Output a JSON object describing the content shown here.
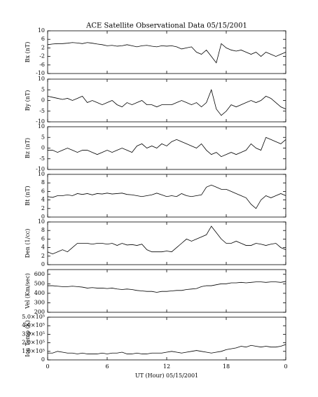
{
  "title": "ACE Satellite Observational Data   05/15/2001",
  "xlabel": "UT (Hour)   05/15/2001",
  "xlim": [
    0,
    24
  ],
  "xticks": [
    0,
    6,
    12,
    18,
    {
      "value": 24,
      "label": "0"
    }
  ],
  "x": [
    0,
    0.5,
    1,
    1.5,
    2,
    2.5,
    3,
    3.5,
    4,
    4.5,
    5,
    5.5,
    6,
    6.5,
    7,
    7.5,
    8,
    8.5,
    9,
    9.5,
    10,
    10.5,
    11,
    11.5,
    12,
    12.5,
    13,
    13.5,
    14,
    14.5,
    15,
    15.5,
    16,
    16.5,
    17,
    17.5,
    18,
    18.5,
    19,
    19.5,
    20,
    20.5,
    21,
    21.5,
    22,
    22.5,
    23,
    23.5,
    24
  ],
  "chart_data": [
    {
      "type": "line",
      "ylabel": "Bx (nT)",
      "color": "#000000",
      "ylim": [
        -10,
        10
      ],
      "yticks": [
        -10,
        -6,
        -2,
        2,
        6,
        10
      ],
      "values": [
        3.5,
        3.8,
        4,
        4,
        4.2,
        4.5,
        4.3,
        4,
        4.5,
        4.2,
        3.8,
        3.5,
        3,
        3.2,
        2.8,
        3,
        3.5,
        3,
        2.5,
        3,
        3.2,
        2.8,
        2.5,
        3,
        2.8,
        3,
        2.5,
        1.5,
        2,
        2.5,
        0,
        -1,
        1,
        -2,
        -5,
        4,
        2,
        1,
        0.5,
        1,
        0,
        -1,
        0,
        -2,
        0,
        -1,
        -2,
        -1,
        0
      ]
    },
    {
      "type": "line",
      "ylabel": "By (nT)",
      "color": "#000000",
      "ylim": [
        -10,
        10
      ],
      "yticks": [
        -10,
        -5,
        0,
        5,
        10
      ],
      "values": [
        2,
        1.5,
        1,
        0.5,
        1,
        0,
        1,
        2,
        -1,
        0,
        -1,
        -2,
        -1,
        0,
        -2,
        -3,
        -1,
        -2,
        -1,
        0,
        -2,
        -2,
        -3,
        -2,
        -2,
        -2,
        -1,
        0,
        -1,
        -2,
        -1,
        -3,
        -1,
        5,
        -4,
        -7,
        -5,
        -2,
        -3,
        -2,
        -1,
        0,
        -1,
        0,
        2,
        1,
        -1,
        -3,
        -4
      ]
    },
    {
      "type": "line",
      "ylabel": "Bz (nT)",
      "color": "#000000",
      "ylim": [
        -10,
        10
      ],
      "yticks": [
        -10,
        -5,
        0,
        5,
        10
      ],
      "values": [
        -1,
        -1,
        -2,
        -1,
        0,
        -1,
        -2,
        -1,
        -1,
        -2,
        -3,
        -2,
        -1,
        -2,
        -1,
        0,
        -1,
        -2,
        1,
        2,
        0,
        1,
        0,
        2,
        1,
        3,
        4,
        3,
        2,
        1,
        0,
        2,
        -1,
        -3,
        -2,
        -4,
        -3,
        -2,
        -3,
        -2,
        -1,
        2,
        0,
        -1,
        5,
        4,
        3,
        2,
        4
      ]
    },
    {
      "type": "line",
      "ylabel": "Bt (nT)",
      "color": "#000000",
      "ylim": [
        0,
        10
      ],
      "yticks": [
        0,
        2,
        4,
        6,
        8,
        10
      ],
      "values": [
        4.8,
        4.6,
        5,
        5,
        5.2,
        5,
        5.5,
        5.3,
        5.5,
        5.2,
        5.5,
        5.4,
        5.6,
        5.4,
        5.5,
        5.6,
        5.3,
        5.2,
        5,
        4.8,
        5,
        5.2,
        5.6,
        5.2,
        4.8,
        5,
        4.8,
        5.5,
        5,
        4.8,
        5,
        5.2,
        7,
        7.5,
        7,
        6.5,
        6.5,
        6,
        5.5,
        5,
        4.5,
        3,
        2,
        4,
        5,
        4.5,
        5,
        5.5,
        5
      ]
    },
    {
      "type": "line",
      "ylabel": "Den (1/cc)",
      "color": "#000000",
      "ylim": [
        0,
        10
      ],
      "yticks": [
        0,
        2,
        4,
        6,
        8,
        10
      ],
      "values": [
        3,
        2.5,
        3,
        3.5,
        3,
        4,
        5,
        5,
        5,
        4.8,
        5,
        5,
        4.8,
        5,
        4.5,
        5,
        4.6,
        4.7,
        4.5,
        4.8,
        3.5,
        3,
        3,
        3,
        3.2,
        3,
        4,
        5,
        6,
        5.5,
        6,
        6.5,
        7,
        9,
        7.5,
        6,
        5,
        5,
        5.5,
        5,
        4.5,
        4.5,
        5,
        4.8,
        4.5,
        4.8,
        5,
        4,
        3.5
      ]
    },
    {
      "type": "line",
      "ylabel": "Vel (Km/sec)",
      "color": "#000000",
      "ylim": [
        200,
        650
      ],
      "yticks": [
        200,
        300,
        400,
        500,
        600
      ],
      "values": [
        480,
        480,
        475,
        470,
        470,
        475,
        470,
        465,
        455,
        460,
        455,
        455,
        450,
        455,
        445,
        440,
        445,
        440,
        430,
        425,
        420,
        420,
        410,
        420,
        420,
        425,
        430,
        430,
        440,
        445,
        450,
        470,
        480,
        480,
        490,
        500,
        500,
        510,
        510,
        515,
        510,
        515,
        520,
        520,
        515,
        520,
        520,
        515,
        525
      ]
    },
    {
      "type": "line",
      "ylabel": "Ion Temp (K)",
      "color": "#000000",
      "ylim": [
        0,
        500000
      ],
      "yticks": [
        0,
        {
          "value": 100000,
          "label": "1.0×10⁵"
        },
        {
          "value": 200000,
          "label": "2.0×10⁵"
        },
        {
          "value": 300000,
          "label": "3.0×10⁵"
        },
        {
          "value": 400000,
          "label": "4.0×10⁵"
        },
        {
          "value": 500000,
          "label": "5.0×10⁵"
        }
      ],
      "values": [
        80000,
        80000,
        100000,
        90000,
        80000,
        80000,
        70000,
        80000,
        70000,
        70000,
        70000,
        80000,
        70000,
        80000,
        80000,
        90000,
        70000,
        70000,
        80000,
        70000,
        70000,
        80000,
        80000,
        80000,
        90000,
        100000,
        90000,
        80000,
        90000,
        100000,
        110000,
        100000,
        90000,
        80000,
        90000,
        100000,
        120000,
        130000,
        140000,
        160000,
        150000,
        170000,
        160000,
        150000,
        160000,
        150000,
        150000,
        160000,
        180000
      ]
    }
  ]
}
